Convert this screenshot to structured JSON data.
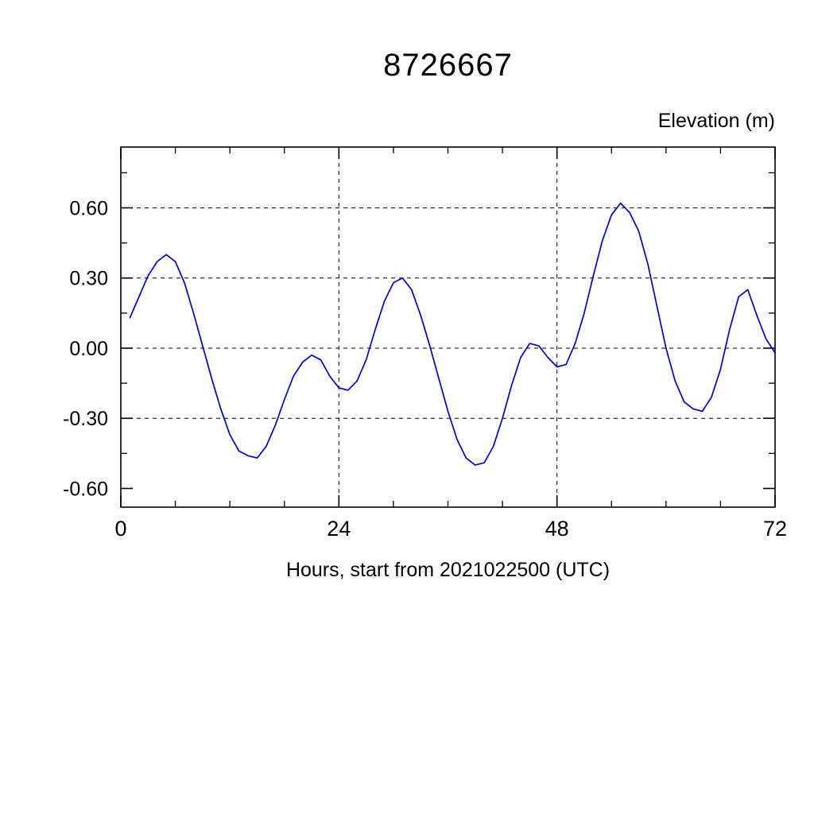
{
  "chart_data": {
    "type": "line",
    "title": "8726667",
    "ylabel": "Elevation (m)",
    "xlabel": "Hours, start from 2021022500 (UTC)",
    "xlim": [
      0,
      72
    ],
    "ylim": [
      -0.68,
      0.86
    ],
    "xticks": {
      "values": [
        0,
        24,
        48,
        72
      ],
      "labels": [
        "0",
        "24",
        "48",
        "72"
      ]
    },
    "yticks": {
      "values": [
        -0.6,
        -0.3,
        0.0,
        0.3,
        0.6
      ],
      "labels": [
        "-0.60",
        "-0.30",
        "0.00",
        "0.30",
        "0.60"
      ]
    },
    "x_minor_step": 6,
    "y_minor_step": 0.15,
    "grid": {
      "x_dashed": [
        24,
        48
      ],
      "y_dashed": [
        -0.3,
        0.0,
        0.3,
        0.6
      ],
      "style": "dashed"
    },
    "line_color": "#0000cc",
    "series": [
      {
        "name": "elevation",
        "color": "#0000cc",
        "x": [
          1,
          2,
          3,
          4,
          5,
          6,
          7,
          8,
          9,
          10,
          11,
          12,
          13,
          14,
          15,
          16,
          17,
          18,
          19,
          20,
          21,
          22,
          23,
          24,
          25,
          26,
          27,
          28,
          29,
          30,
          31,
          32,
          33,
          34,
          35,
          36,
          37,
          38,
          39,
          40,
          41,
          42,
          43,
          44,
          45,
          46,
          47,
          48,
          49,
          50,
          51,
          52,
          53,
          54,
          55,
          56,
          57,
          58,
          59,
          60,
          61,
          62,
          63,
          64,
          65,
          66,
          67,
          68,
          69,
          70,
          71,
          72
        ],
        "values": [
          0.13,
          0.22,
          0.31,
          0.37,
          0.4,
          0.37,
          0.28,
          0.15,
          0.01,
          -0.13,
          -0.26,
          -0.37,
          -0.44,
          -0.46,
          -0.47,
          -0.42,
          -0.33,
          -0.22,
          -0.12,
          -0.06,
          -0.03,
          -0.05,
          -0.12,
          -0.17,
          -0.18,
          -0.14,
          -0.05,
          0.08,
          0.2,
          0.28,
          0.3,
          0.25,
          0.14,
          0.01,
          -0.13,
          -0.27,
          -0.39,
          -0.47,
          -0.5,
          -0.49,
          -0.42,
          -0.3,
          -0.16,
          -0.04,
          0.02,
          0.01,
          -0.04,
          -0.08,
          -0.07,
          0.02,
          0.15,
          0.31,
          0.46,
          0.57,
          0.62,
          0.58,
          0.5,
          0.36,
          0.18,
          0.0,
          -0.14,
          -0.23,
          -0.26,
          -0.27,
          -0.21,
          -0.09,
          0.08,
          0.22,
          0.25,
          0.14,
          0.04,
          -0.02
        ]
      }
    ]
  }
}
